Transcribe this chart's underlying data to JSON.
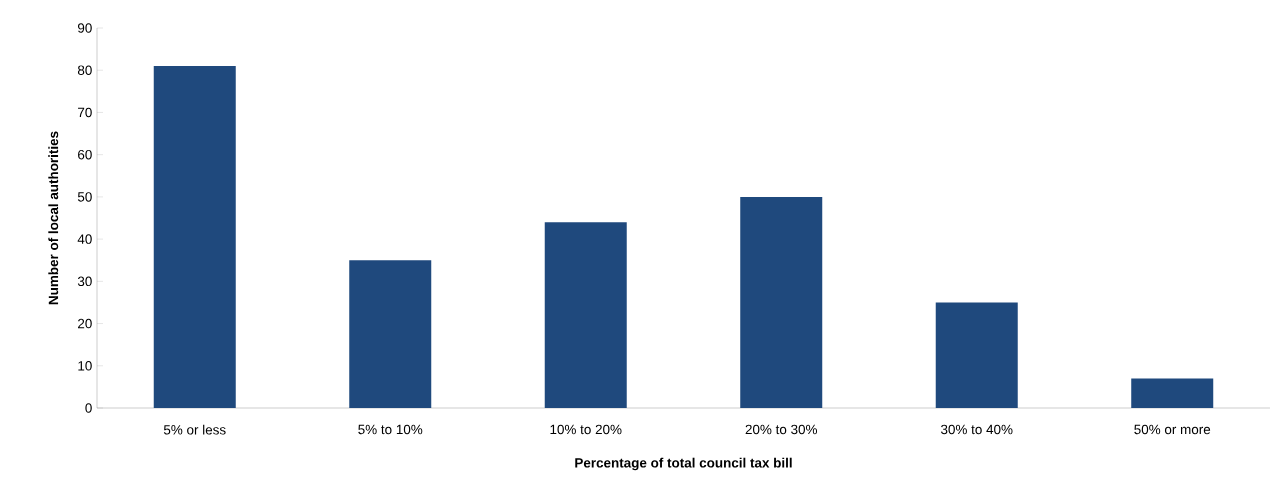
{
  "chart_data": {
    "type": "bar",
    "xlabel": "Percentage of total council tax bill",
    "ylabel": "Number of local authorities",
    "categories": [
      "5% or less",
      "5% to 10%",
      "10% to 20%",
      "20% to 30%",
      "30% to 40%",
      "50% or more"
    ],
    "values": [
      81,
      35,
      44,
      50,
      25,
      7
    ],
    "color": "#1f497d",
    "ylim": [
      0,
      90
    ],
    "yticks": [
      0,
      10,
      20,
      30,
      40,
      50,
      60,
      70,
      80,
      90
    ],
    "grid": false
  }
}
